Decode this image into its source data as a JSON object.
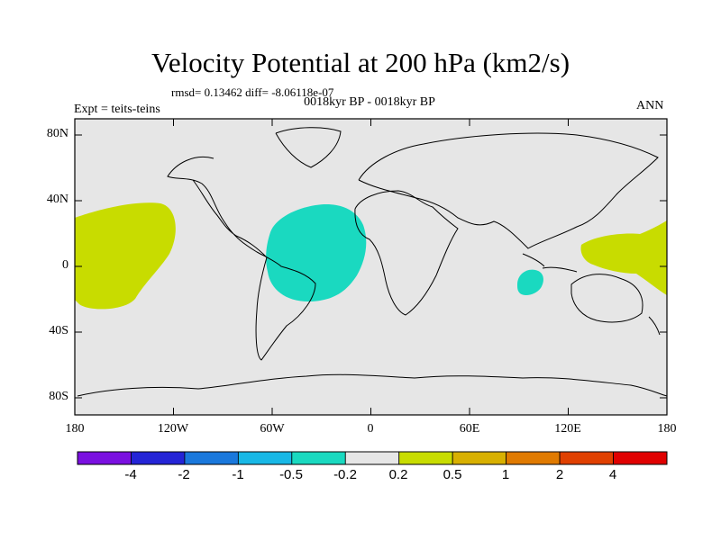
{
  "map": {
    "title": "Velocity Potential at 200 hPa (km2/s)",
    "stats": "rmsd= 0.13462 diff= -8.06118e-07",
    "left_label": "Expt = teits-teins",
    "center_label": "0018kyr BP - 0018kyr BP",
    "right_label": "ANN",
    "lat_ticks": [
      "80N",
      "40N",
      "0",
      "40S",
      "80S"
    ],
    "lon_ticks": [
      "180",
      "120W",
      "60W",
      "0",
      "60E",
      "120E",
      "180"
    ],
    "regions": [
      {
        "name": "central-pacific-positive-region",
        "level": "0.2 to 0.5",
        "color": "#c8dc00"
      },
      {
        "name": "atlantic-negative-region",
        "level": "-0.5 to -0.2",
        "color": "#1ad9c0"
      },
      {
        "name": "indian-ocean-negative-region",
        "level": "-0.5 to -0.2",
        "color": "#1ad9c0"
      },
      {
        "name": "west-pacific-positive-region",
        "level": "0.2 to 0.5",
        "color": "#c8dc00"
      }
    ]
  },
  "colorbar": {
    "colors": [
      "#7a10e0",
      "#2424d6",
      "#1a78dc",
      "#18b8e6",
      "#1ad9c0",
      "#e6e6e6",
      "#c8dc00",
      "#d8b000",
      "#e07a00",
      "#e04000",
      "#e00000"
    ],
    "labels": [
      "-4",
      "-2",
      "-1",
      "-0.5",
      "-0.2",
      "0.2",
      "0.5",
      "1",
      "2",
      "4"
    ]
  }
}
